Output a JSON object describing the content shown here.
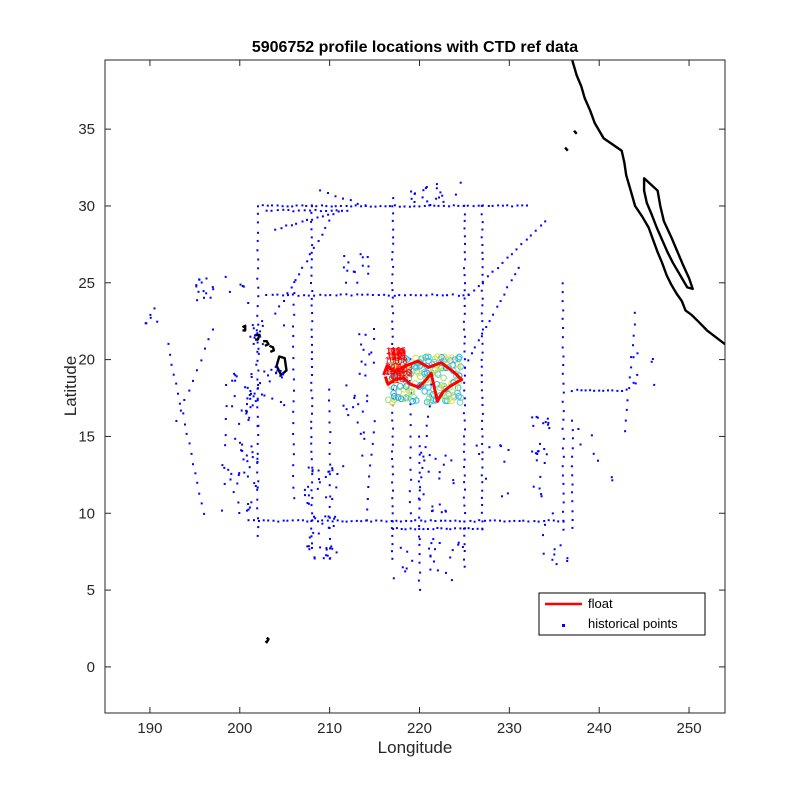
{
  "chart_data": {
    "type": "scatter",
    "title": "5906752 profile locations with CTD ref data",
    "xlabel": "Longitude",
    "ylabel": "Latitude",
    "xlim": [
      185,
      254
    ],
    "ylim": [
      -3,
      39.5
    ],
    "xticks": [
      190,
      200,
      210,
      220,
      230,
      240,
      250
    ],
    "yticks": [
      0,
      5,
      10,
      15,
      20,
      25,
      30,
      35
    ],
    "grid": false,
    "legend": {
      "placement": "bottom-right",
      "entries": [
        {
          "label": "float",
          "color": "#ff0000",
          "style": "line"
        },
        {
          "label": "historical points",
          "color": "#0000ff",
          "style": "point"
        }
      ]
    },
    "series": [
      {
        "name": "float",
        "color": "#ff0000",
        "points": [
          [
            216.0,
            19.0
          ],
          [
            216.4,
            19.6
          ],
          [
            217.3,
            19.2
          ],
          [
            218.5,
            19.6
          ],
          [
            219.8,
            19.9
          ],
          [
            221.0,
            19.5
          ],
          [
            222.4,
            19.8
          ],
          [
            223.8,
            19.2
          ],
          [
            224.7,
            18.7
          ],
          [
            223.5,
            18.3
          ],
          [
            222.6,
            17.9
          ],
          [
            222.0,
            17.3
          ],
          [
            221.6,
            18.3
          ],
          [
            221.3,
            19.1
          ],
          [
            220.6,
            18.6
          ],
          [
            219.9,
            18.2
          ],
          [
            219.0,
            18.4
          ],
          [
            218.2,
            18.8
          ],
          [
            217.3,
            18.7
          ],
          [
            216.5,
            18.4
          ],
          [
            216.2,
            18.9
          ]
        ]
      },
      {
        "name": "historical points",
        "color": "#0000ff",
        "description_of_distribution": "cruise tracks and scattered CTD stations in a ring around the float"
      }
    ],
    "coastline_color": "#000000"
  }
}
